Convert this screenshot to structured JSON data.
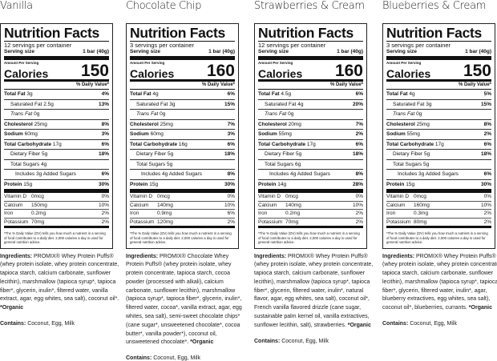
{
  "common": {
    "title": "Nutrition Facts",
    "serving_size_label": "Serving size",
    "serving_size": "1 bar (40g)",
    "amount_per_serving": "Amount Per Serving",
    "calories_label": "Calories",
    "dv_header": "% Daily Value*",
    "total_fat": "Total Fat",
    "saturated_fat": "Saturated Fat",
    "trans_fat": "Trans Fat",
    "cholesterol": "Cholesterol",
    "sodium": "Sodium",
    "total_carb": "Total Carbohydrate",
    "dietary_fiber": "Dietary Fiber",
    "total_sugars": "Total Sugars",
    "protein": "Protein",
    "vitamin_d": "Vitamin D",
    "calcium": "Calcium",
    "iron": "Iron",
    "potassium": "Potassium",
    "footnote": "*The % Daily Value (DV) tells you how much a nutrient in a serving of food contributes to a daily diet. 2,000 calories a day is used for general nutrition advice.",
    "ingredients_label": "Ingredients:",
    "contains_label": "Contains:",
    "organic_note": "*Organic"
  },
  "products": [
    {
      "flavor": "Vanilla",
      "servings": "12 servings per container",
      "calories": "150",
      "total_fat": "3g",
      "total_fat_dv": "4%",
      "sat_fat": "2.5g",
      "sat_fat_dv": "13%",
      "trans_fat": "0g",
      "cholesterol": "25mg",
      "cholesterol_dv": "8%",
      "sodium": "60mg",
      "sodium_dv": "3%",
      "carb": "17g",
      "carb_dv": "6%",
      "fiber": "5g",
      "fiber_dv": "18%",
      "sugars": "4g",
      "added_sugars": "Includes 3g Added Sugars",
      "added_sugars_dv": "6%",
      "protein": "15g",
      "protein_dv": "30%",
      "vitamin_d": "0mcg",
      "vitamin_d_dv": "0%",
      "calcium": "150mg",
      "calcium_dv": "10%",
      "iron": "0.2mg",
      "iron_dv": "2%",
      "potassium": "70mg",
      "potassium_dv": "2%",
      "ingredients": "PROMIX® Whey Protein Puffs® (whey protein isolate, whey protein concentrate, tapioca starch, calcium carbonate, sunflower lecithin), marshmallow (tapioca syrup*, tapioca fiber*, glycerin, inulin*, filtered water, vanilla extract, agar, egg whites, sea salt), coconut oil*.",
      "contains": "Coconut, Egg, Milk"
    },
    {
      "flavor": "Chocolate Chip",
      "servings": "3 servings per container",
      "calories": "160",
      "total_fat": "4g",
      "total_fat_dv": "6%",
      "sat_fat": "3g",
      "sat_fat_dv": "15%",
      "trans_fat": "0g",
      "cholesterol": "25mg",
      "cholesterol_dv": "7%",
      "sodium": "60mg",
      "sodium_dv": "3%",
      "carb": "16g",
      "carb_dv": "6%",
      "fiber": "5g",
      "fiber_dv": "18%",
      "sugars": "5g",
      "added_sugars": "Includes 4g Added Sugars",
      "added_sugars_dv": "8%",
      "protein": "15g",
      "protein_dv": "30%",
      "vitamin_d": "0mcg",
      "vitamin_d_dv": "0%",
      "calcium": "140mg",
      "calcium_dv": "10%",
      "iron": "0.9mg",
      "iron_dv": "6%",
      "potassium": "120mg",
      "potassium_dv": "2%",
      "ingredients": "PROMIX® Chocolate Whey Protein Puffs® (whey protein isolate, whey protein concentrate, tapioca starch, cocoa powder (processed with alkali), calcium carbonate, sunflower lecithin), marshmallow (tapioca syrup*, tapioca fiber*, glycerin, inulin*, filtered water, cocoa*, vanilla extract, agar, egg whites, sea salt), semi-sweet chocolate chips* (cane sugar*, unsweetened chocolate*, cocoa butter*, vanilla powder*), coconut oil, unsweetened chocolate*.",
      "contains": "Coconut, Egg, Milk"
    },
    {
      "flavor": "Strawberries & Cream",
      "servings": "12 servings per container",
      "calories": "160",
      "total_fat": "4.5g",
      "total_fat_dv": "6%",
      "sat_fat": "4g",
      "sat_fat_dv": "20%",
      "trans_fat": "0g",
      "cholesterol": "20mg",
      "cholesterol_dv": "7%",
      "sodium": "55mg",
      "sodium_dv": "2%",
      "carb": "17g",
      "carb_dv": "6%",
      "fiber": "5g",
      "fiber_dv": "18%",
      "sugars": "6g",
      "added_sugars": "Includes 4g Added Sugars",
      "added_sugars_dv": "8%",
      "protein": "14g",
      "protein_dv": "28%",
      "vitamin_d": "0mcg",
      "vitamin_d_dv": "0%",
      "calcium": "140mg",
      "calcium_dv": "10%",
      "iron": "0.2mg",
      "iron_dv": "2%",
      "potassium": "70mg",
      "potassium_dv": "2%",
      "ingredients": "PROMIX® Whey Protein Puffs® (whey protein isolate, whey protein concentrate, tapioca starch, calcium carbonate, sunflower lecithin), marshmallow (tapioca syrup*, tapioca fiber*, glycerin, filtered water, inulin*, natural flavor, agar, egg whites, sea salt), coconut oil*, French vanilla flavored drizzle (cane sugar, sustainable palm kernel oil, vanilla extractives, sunflower lecithin, salt), strawberries.",
      "contains": "Coconut, Egg, Milk"
    },
    {
      "flavor": "Blueberries & Cream",
      "servings": "3 servings per container",
      "calories": "150",
      "total_fat": "4g",
      "total_fat_dv": "5%",
      "sat_fat": "3g",
      "sat_fat_dv": "15%",
      "trans_fat": "0g",
      "cholesterol": "25mg",
      "cholesterol_dv": "8%",
      "sodium": "55mg",
      "sodium_dv": "2%",
      "carb": "17g",
      "carb_dv": "6%",
      "fiber": "5g",
      "fiber_dv": "18%",
      "sugars": "5g",
      "added_sugars": "Includes 3g Added Sugars",
      "added_sugars_dv": "6%",
      "protein": "15g",
      "protein_dv": "30%",
      "vitamin_d": "0mcg",
      "vitamin_d_dv": "0%",
      "calcium": "160mg",
      "calcium_dv": "10%",
      "iron": "0.3mg",
      "iron_dv": "2%",
      "potassium": "80mg",
      "potassium_dv": "2%",
      "ingredients": "PROMIX® Whey Protein Puffs® (whey protein isolate, whey protein concentrate, tapioca starch, calcium carbonate, sunflower lecithin), marshmallow (tapioca syrup*, tapioca fiber*, glycerin, filtered water, inulin*, agar, blueberry extractives, egg whites, sea salt), coconut oil*, blueberries, currants.",
      "contains": "Coconut, Egg, Milk"
    }
  ]
}
